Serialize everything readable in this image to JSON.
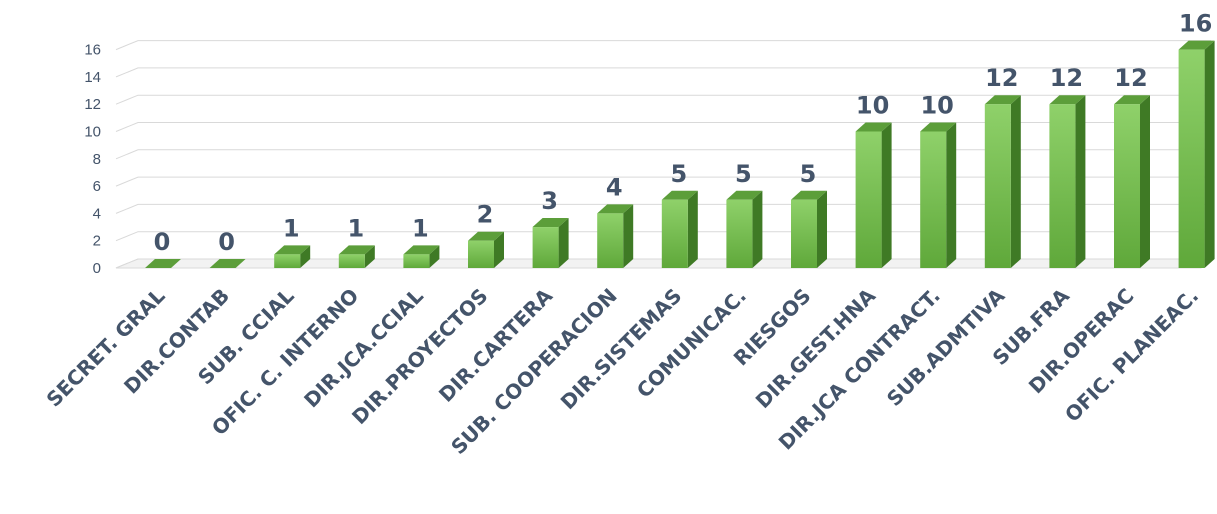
{
  "chart_data": {
    "type": "bar",
    "categories": [
      "SECRET. GRAL",
      "DIR.CONTAB",
      "SUB. CCIAL",
      "OFIC. C. INTERNO",
      "DIR.JCA.CCIAL",
      "DIR.PROYECTOS",
      "DIR.CARTERA",
      "SUB. COOPERACION",
      "DIR.SISTEMAS",
      "COMUNICAC.",
      "RIESGOS",
      "DIR.GEST.HNA",
      "DIR.JCA CONTRACT.",
      "SUB.ADMTIVA",
      "SUB.FRA",
      "DIR.OPERAC",
      "OFIC. PLANEAC."
    ],
    "values": [
      0,
      0,
      1,
      1,
      1,
      2,
      3,
      4,
      5,
      5,
      5,
      10,
      10,
      12,
      12,
      12,
      16
    ],
    "data_labels": [
      "0",
      "0",
      "1",
      "1",
      "1",
      "2",
      "3",
      "4",
      "5",
      "5",
      "5",
      "10",
      "10",
      "12",
      "12",
      "12",
      "16"
    ],
    "y_ticks": [
      "0",
      "2",
      "4",
      "6",
      "8",
      "10",
      "12",
      "14",
      "16"
    ],
    "ylim": [
      0,
      16
    ],
    "grid": true,
    "legend": "none",
    "style": "3d-column",
    "colors": {
      "bar_front_top": "#8fd16a",
      "bar_front_bottom": "#5fa83a",
      "bar_side": "#3f7a25",
      "bar_top": "#5c9e3a",
      "text": "#44546a",
      "grid": "#d9d9d9"
    }
  }
}
